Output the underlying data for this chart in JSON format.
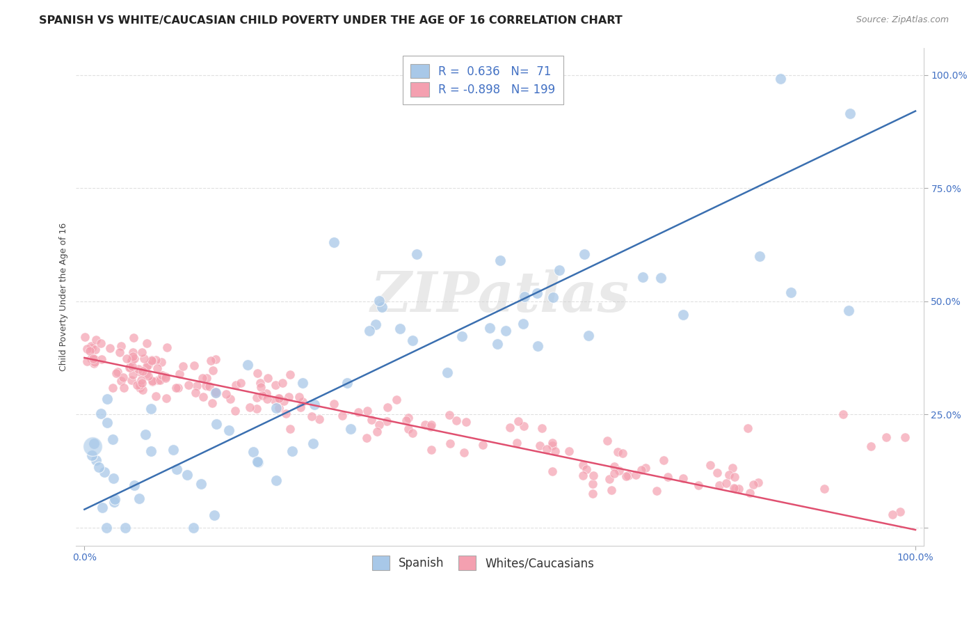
{
  "title": "SPANISH VS WHITE/CAUCASIAN CHILD POVERTY UNDER THE AGE OF 16 CORRELATION CHART",
  "source": "Source: ZipAtlas.com",
  "ylabel": "Child Poverty Under the Age of 16",
  "legend_r_spanish": "0.636",
  "legend_n_spanish": "71",
  "legend_r_white": "-0.898",
  "legend_n_white": "199",
  "blue_color": "#a8c8e8",
  "pink_color": "#f4a0b0",
  "blue_line_color": "#3a6fb0",
  "pink_line_color": "#e05070",
  "background_color": "#ffffff",
  "grid_color": "#dddddd",
  "tick_color": "#4472c4",
  "title_fontsize": 11.5,
  "axis_label_fontsize": 9,
  "tick_fontsize": 10,
  "legend_fontsize": 12
}
